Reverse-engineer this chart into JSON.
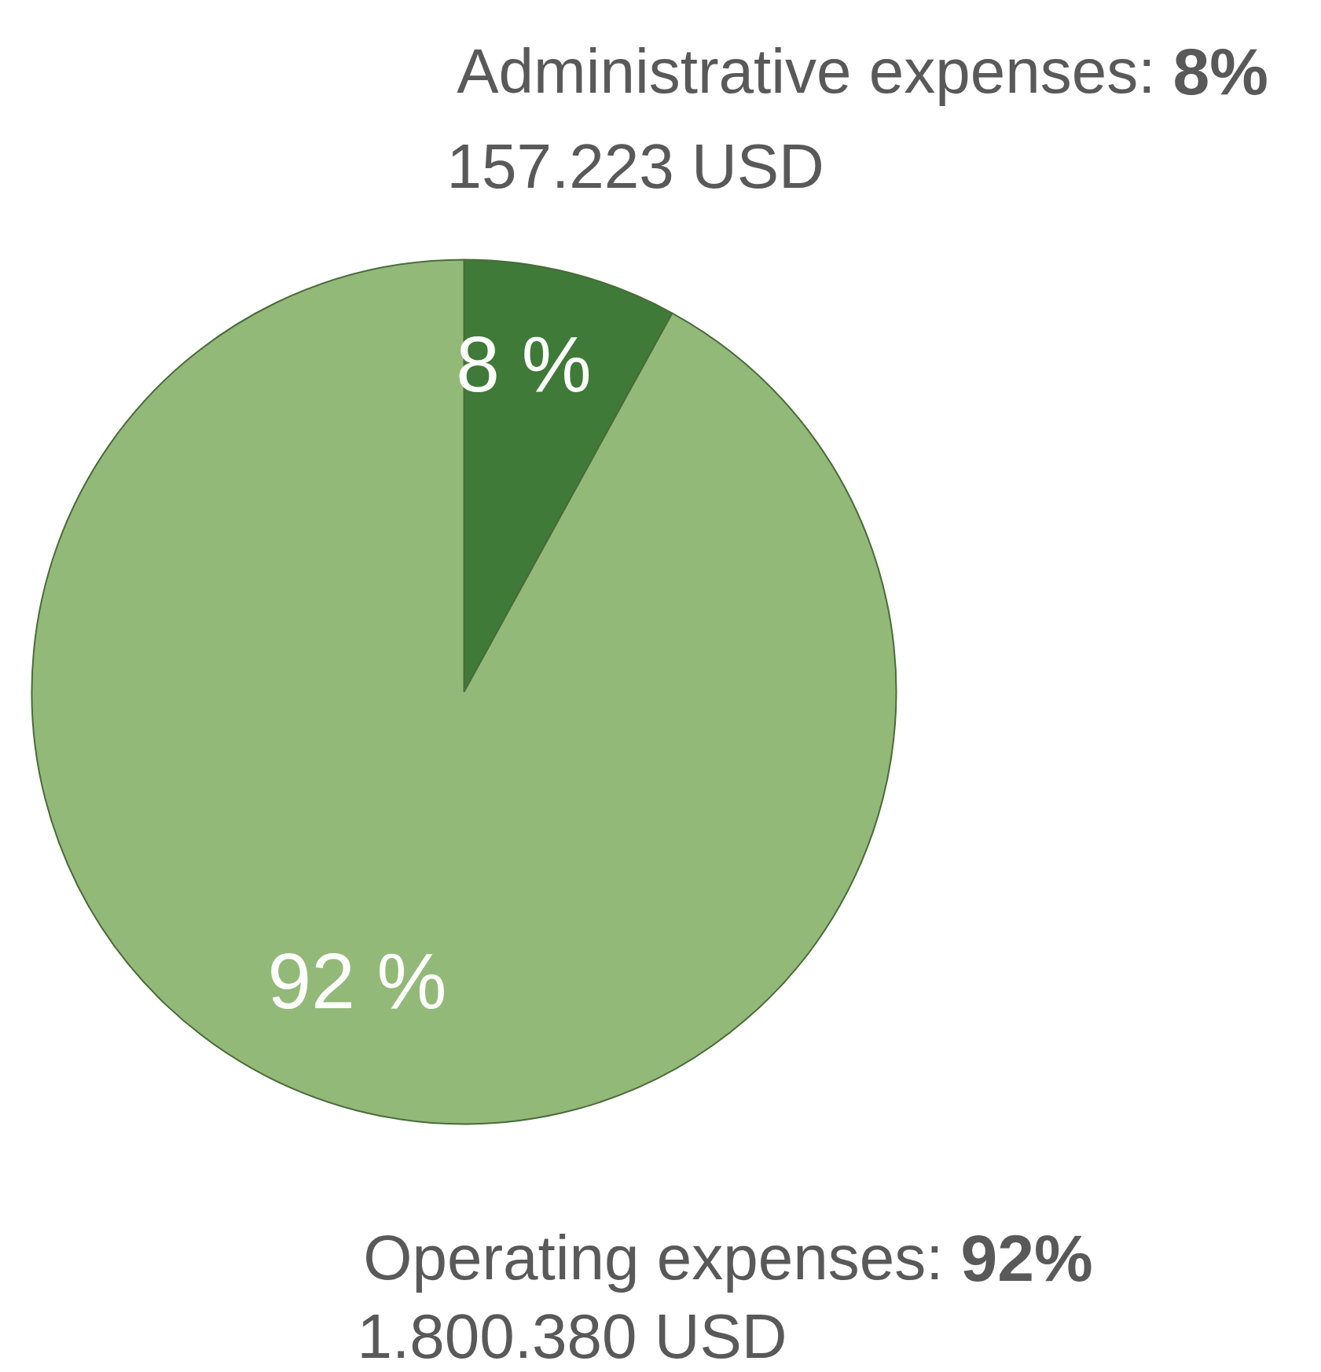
{
  "chart_data": {
    "type": "pie",
    "categories": [
      "Administrative expenses",
      "Operating expenses"
    ],
    "values": [
      8,
      92
    ],
    "colors": [
      "#3f7a38",
      "#93b979"
    ],
    "value_labels": [
      "8 %",
      "92 %"
    ],
    "annotations": [
      {
        "text": "8%",
        "x": "Administrative expenses"
      },
      {
        "text": "157.223 USD",
        "x": "Administrative expenses"
      },
      {
        "text": "92%",
        "x": "Operating expenses"
      },
      {
        "text": "1.800.380 USD",
        "x": "Operating expenses"
      }
    ]
  }
}
